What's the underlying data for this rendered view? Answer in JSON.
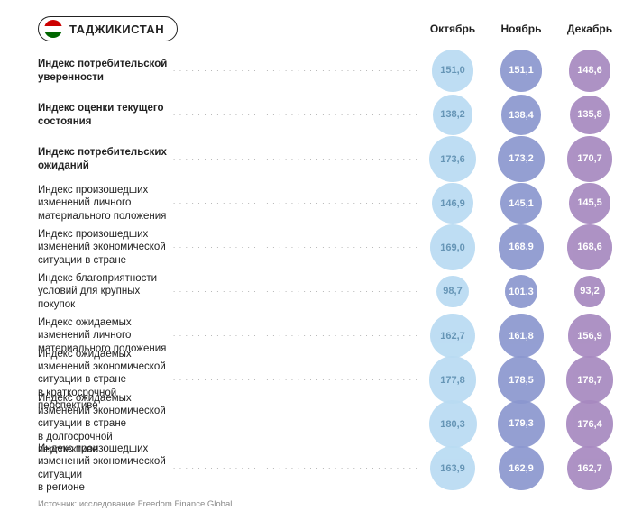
{
  "country": "ТАДЖИКИСТАН",
  "months": [
    "Октябрь",
    "Ноябрь",
    "Декабрь"
  ],
  "month_colors": [
    "#b9dbf2",
    "#8b97cf",
    "#a789c0"
  ],
  "month_text_colors": [
    "#5a8db0",
    "#ffffff",
    "#ffffff"
  ],
  "bubble_min_value": 90,
  "bubble_max_value": 185,
  "bubble_min_diam": 34,
  "bubble_max_diam": 54,
  "rows": [
    {
      "label": "Индекс потребительской уверенности",
      "bold": true,
      "values": [
        "151,0",
        "151,1",
        "148,6"
      ],
      "nums": [
        151.0,
        151.1,
        148.6
      ]
    },
    {
      "label": "Индекс оценки текущего состояния",
      "bold": true,
      "values": [
        "138,2",
        "138,4",
        "135,8"
      ],
      "nums": [
        138.2,
        138.4,
        135.8
      ]
    },
    {
      "label": "Индекс потребительских ожиданий",
      "bold": true,
      "values": [
        "173,6",
        "173,2",
        "170,7"
      ],
      "nums": [
        173.6,
        173.2,
        170.7
      ]
    },
    {
      "label": "Индекс произошедших изменений личного материального положения",
      "bold": false,
      "values": [
        "146,9",
        "145,1",
        "145,5"
      ],
      "nums": [
        146.9,
        145.1,
        145.5
      ]
    },
    {
      "label": "Индекс произошедших изменений экономической ситуации в стране",
      "bold": false,
      "values": [
        "169,0",
        "168,9",
        "168,6"
      ],
      "nums": [
        169.0,
        168.9,
        168.6
      ]
    },
    {
      "label": "Индекс благоприятности условий для крупных покупок",
      "bold": false,
      "values": [
        "98,7",
        "101,3",
        "93,2"
      ],
      "nums": [
        98.7,
        101.3,
        93.2
      ]
    },
    {
      "label": "Индекс ожидаемых изменений личного материального положения",
      "bold": false,
      "values": [
        "162,7",
        "161,8",
        "156,9"
      ],
      "nums": [
        162.7,
        161.8,
        156.9
      ]
    },
    {
      "label": "Индекс ожидаемых изменений экономической ситуации в стране\nв краткосрочной перспективе",
      "bold": false,
      "values": [
        "177,8",
        "178,5",
        "178,7"
      ],
      "nums": [
        177.8,
        178.5,
        178.7
      ]
    },
    {
      "label": "Индекс ожидаемых изменений экономической ситуации в стране\nв долгосрочной перспективе",
      "bold": false,
      "values": [
        "180,3",
        "179,3",
        "176,4"
      ],
      "nums": [
        180.3,
        179.3,
        176.4
      ]
    },
    {
      "label": "Индекс произошедших изменений экономической ситуации\nв регионе",
      "bold": false,
      "values": [
        "163,9",
        "162,9",
        "162,7"
      ],
      "nums": [
        163.9,
        162.9,
        162.7
      ]
    }
  ],
  "source": "Источник: исследование Freedom Finance Global"
}
